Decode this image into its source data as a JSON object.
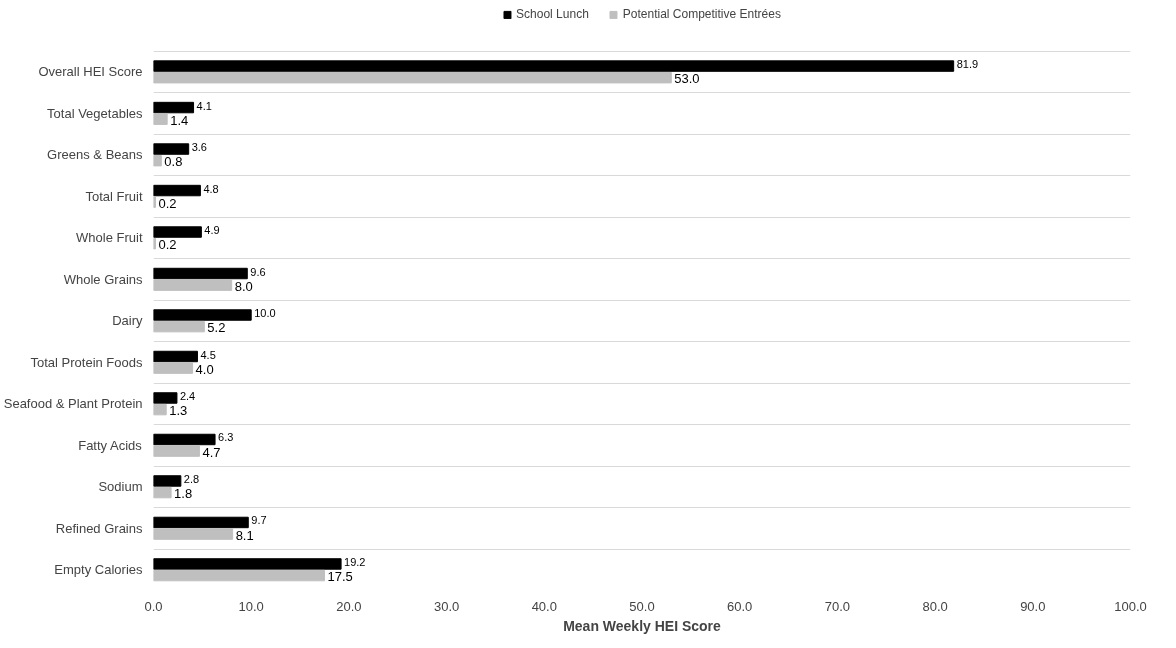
{
  "chart_data": {
    "type": "bar",
    "orientation": "horizontal",
    "xlabel": "Mean Weekly HEI Score",
    "categories": [
      "Overall HEI Score",
      "Total Vegetables",
      "Greens & Beans",
      "Total Fruit",
      "Whole Fruit",
      "Whole Grains",
      "Dairy",
      "Total Protein Foods",
      "Seafood & Plant Protein",
      "Fatty Acids",
      "Sodium",
      "Refined Grains",
      "Empty Calories"
    ],
    "series": [
      {
        "name": "School Lunch",
        "color": "#000000",
        "values": [
          81.9,
          4.1,
          3.6,
          4.8,
          4.9,
          9.6,
          10.0,
          4.5,
          2.4,
          6.3,
          2.8,
          9.7,
          19.2
        ],
        "value_labels": [
          "81.9",
          "4.1",
          "3.6",
          "4.8",
          "4.9",
          "9.6",
          "10.0",
          "4.5",
          "2.4",
          "6.3",
          "2.8",
          "9.7",
          "19.2"
        ]
      },
      {
        "name": "Potential Competitive Entrées",
        "color": "#bfbfbf",
        "values": [
          53.0,
          1.4,
          0.8,
          0.2,
          0.2,
          8.0,
          5.2,
          4.0,
          1.3,
          4.7,
          1.8,
          8.1,
          17.5
        ],
        "value_labels": [
          "53.0",
          "1.4",
          "0.8",
          "0.2",
          "0.2",
          "8.0",
          "5.2",
          "4.0",
          "1.3",
          "4.7",
          "1.8",
          "8.1",
          "17.5"
        ]
      }
    ],
    "xlim": [
      0,
      100
    ],
    "xticks": [
      {
        "value": 0,
        "label": "0.0"
      },
      {
        "value": 10,
        "label": "10.0"
      },
      {
        "value": 20,
        "label": "20.0"
      },
      {
        "value": 30,
        "label": "30.0"
      },
      {
        "value": 40,
        "label": "40.0"
      },
      {
        "value": 50,
        "label": "50.0"
      },
      {
        "value": 60,
        "label": "60.0"
      },
      {
        "value": 70,
        "label": "70.0"
      },
      {
        "value": 80,
        "label": "80.0"
      },
      {
        "value": 90,
        "label": "90.0"
      },
      {
        "value": 100,
        "label": "100.0"
      }
    ],
    "grid": "y",
    "legend": "top"
  }
}
